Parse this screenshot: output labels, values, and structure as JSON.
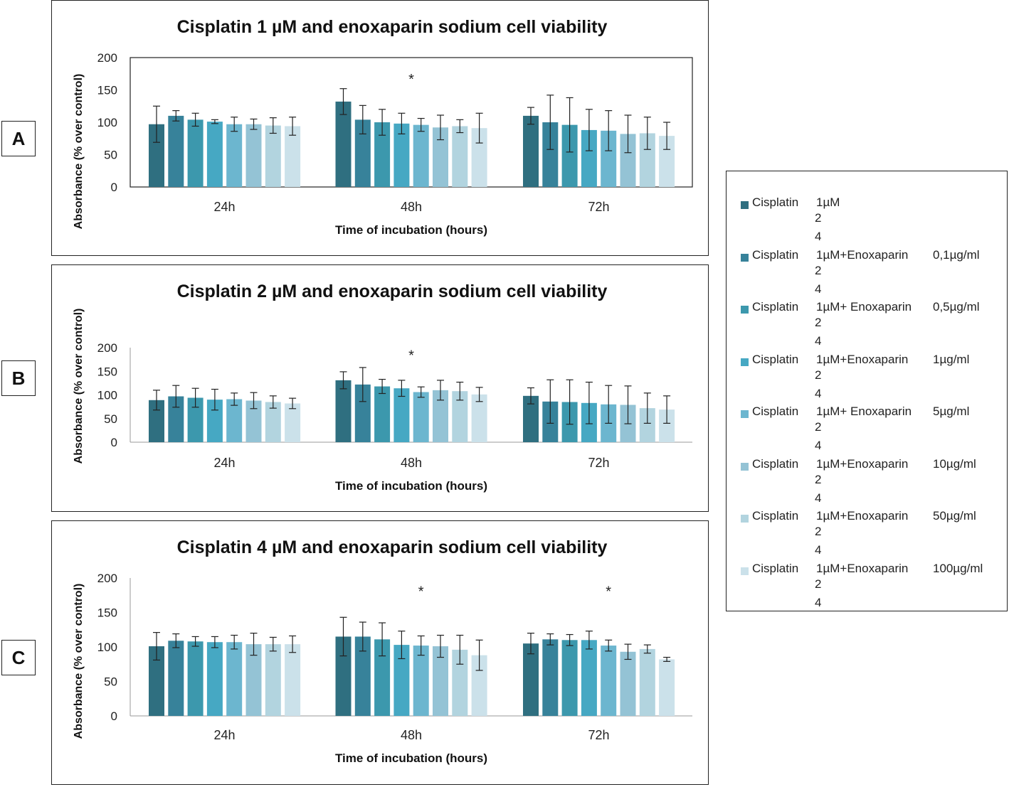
{
  "panel_labels": [
    "A",
    "B",
    "C"
  ],
  "legend": {
    "items": [
      {
        "name": "Cisplatin",
        "dose": "1µM",
        "conc": "",
        "n1": "2",
        "n2": "4",
        "color": "#2f6f80"
      },
      {
        "name": "Cisplatin",
        "dose": "1µM+Enoxaparin",
        "conc": "0,1µg/ml",
        "n1": "2",
        "n2": "4",
        "color": "#37829a"
      },
      {
        "name": "Cisplatin",
        "dose": "1µM+ Enoxaparin",
        "conc": "0,5µg/ml",
        "n1": "2",
        "n2": "4",
        "color": "#3c98ad"
      },
      {
        "name": "Cisplatin",
        "dose": "1µM+Enoxaparin",
        "conc": "1µg/ml",
        "n1": "2",
        "n2": "4",
        "color": "#46a8c3"
      },
      {
        "name": "Cisplatin",
        "dose": "1µM+ Enoxaparin",
        "conc": "5µg/ml",
        "n1": "2",
        "n2": "4",
        "color": "#6cb6cf"
      },
      {
        "name": "Cisplatin",
        "dose": "1µM+Enoxaparin",
        "conc": "10µg/ml",
        "n1": "2",
        "n2": "4",
        "color": "#94c3d5"
      },
      {
        "name": "Cisplatin",
        "dose": "1µM+Enoxaparin",
        "conc": "50µg/ml",
        "n1": "2",
        "n2": "4",
        "color": "#b2d4df"
      },
      {
        "name": "Cisplatin",
        "dose": "1µM+Enoxaparin",
        "conc": "100µg/ml",
        "n1": "2",
        "n2": "4",
        "color": "#cbe1ea"
      }
    ]
  },
  "chart_data": [
    {
      "type": "bar",
      "panel": "A",
      "title": "Cisplatin 1 µM and enoxaparin sodium cell viability",
      "xlabel": "Time of incubation (hours)",
      "ylabel": "Absorbance (% over control)",
      "categories": [
        "24h",
        "48h",
        "72h"
      ],
      "ylim": [
        0,
        200
      ],
      "yticks": [
        "0",
        "50",
        "100",
        "150",
        "200"
      ],
      "plot_frame": true,
      "series": [
        {
          "name": "Cisplatin 1µM",
          "values": [
            97,
            132,
            110
          ],
          "errors": [
            28,
            20,
            13
          ]
        },
        {
          "name": "Cisplatin 1µM+Enoxaparin 0,1µg/ml",
          "values": [
            110,
            104,
            100
          ],
          "errors": [
            8,
            22,
            42
          ]
        },
        {
          "name": "Cisplatin 1µM+ Enoxaparin 0,5µg/ml",
          "values": [
            104,
            100,
            96
          ],
          "errors": [
            10,
            20,
            42
          ]
        },
        {
          "name": "Cisplatin 1µM+Enoxaparin 1µg/ml",
          "values": [
            101,
            98,
            88
          ],
          "errors": [
            3,
            16,
            32
          ]
        },
        {
          "name": "Cisplatin 1µM+ Enoxaparin 5µg/ml",
          "values": [
            97,
            96,
            87
          ],
          "errors": [
            11,
            10,
            31
          ]
        },
        {
          "name": "Cisplatin 1µM+Enoxaparin 10µg/ml",
          "values": [
            97,
            92,
            82
          ],
          "errors": [
            8,
            19,
            29
          ]
        },
        {
          "name": "Cisplatin 1µM+Enoxaparin 50µg/ml",
          "values": [
            95,
            94,
            83
          ],
          "errors": [
            12,
            10,
            25
          ]
        },
        {
          "name": "Cisplatin 1µM+Enoxaparin 100µg/ml",
          "values": [
            94,
            91,
            79
          ],
          "errors": [
            14,
            23,
            21
          ]
        }
      ],
      "annotations": [
        {
          "text": "*",
          "category": "48h",
          "series_index": 3.5,
          "value": 168
        }
      ]
    },
    {
      "type": "bar",
      "panel": "B",
      "title": "Cisplatin 2 µM and enoxaparin sodium cell viability",
      "xlabel": "Time of incubation (hours)",
      "ylabel": "Absorbance (% over control)",
      "categories": [
        "24h",
        "48h",
        "72h"
      ],
      "ylim": [
        0,
        200
      ],
      "yticks": [
        "0",
        "50",
        "100",
        "150",
        "200"
      ],
      "plot_frame": false,
      "series": [
        {
          "name": "Cisplatin 1µM",
          "values": [
            89,
            131,
            98
          ],
          "errors": [
            21,
            18,
            17
          ]
        },
        {
          "name": "Cisplatin 1µM+Enoxaparin 0,1µg/ml",
          "values": [
            97,
            122,
            86
          ],
          "errors": [
            23,
            36,
            46
          ]
        },
        {
          "name": "Cisplatin 1µM+ Enoxaparin 0,5µg/ml",
          "values": [
            94,
            118,
            85
          ],
          "errors": [
            20,
            15,
            47
          ]
        },
        {
          "name": "Cisplatin 1µM+Enoxaparin 1µg/ml",
          "values": [
            90,
            114,
            83
          ],
          "errors": [
            22,
            17,
            44
          ]
        },
        {
          "name": "Cisplatin 1µM+ Enoxaparin 5µg/ml",
          "values": [
            91,
            106,
            80
          ],
          "errors": [
            13,
            11,
            40
          ]
        },
        {
          "name": "Cisplatin 1µM+Enoxaparin 10µg/ml",
          "values": [
            88,
            110,
            79
          ],
          "errors": [
            17,
            21,
            40
          ]
        },
        {
          "name": "Cisplatin 1µM+Enoxaparin 50µg/ml",
          "values": [
            85,
            108,
            72
          ],
          "errors": [
            13,
            19,
            32
          ]
        },
        {
          "name": "Cisplatin 1µM+Enoxaparin 100µg/ml",
          "values": [
            82,
            101,
            69
          ],
          "errors": [
            11,
            15,
            29
          ]
        }
      ],
      "annotations": [
        {
          "text": "*",
          "category": "48h",
          "series_index": 3.5,
          "value": 186
        }
      ]
    },
    {
      "type": "bar",
      "panel": "C",
      "title": "Cisplatin 4 µM and enoxaparin sodium cell viability",
      "xlabel": "Time of incubation (hours)",
      "ylabel": "Absorbance (% over control)",
      "categories": [
        "24h",
        "48h",
        "72h"
      ],
      "ylim": [
        0,
        200
      ],
      "yticks": [
        "0",
        "50",
        "100",
        "150",
        "200"
      ],
      "plot_frame": false,
      "series": [
        {
          "name": "Cisplatin 1µM",
          "values": [
            101,
            115,
            105
          ],
          "errors": [
            20,
            28,
            15
          ]
        },
        {
          "name": "Cisplatin 1µM+Enoxaparin 0,1µg/ml",
          "values": [
            109,
            115,
            111
          ],
          "errors": [
            10,
            21,
            8
          ]
        },
        {
          "name": "Cisplatin 1µM+ Enoxaparin 0,5µg/ml",
          "values": [
            108,
            111,
            110
          ],
          "errors": [
            7,
            24,
            8
          ]
        },
        {
          "name": "Cisplatin 1µM+Enoxaparin 1µg/ml",
          "values": [
            107,
            103,
            110
          ],
          "errors": [
            8,
            20,
            13
          ]
        },
        {
          "name": "Cisplatin 1µM+ Enoxaparin 5µg/ml",
          "values": [
            107,
            102,
            102
          ],
          "errors": [
            10,
            14,
            8
          ]
        },
        {
          "name": "Cisplatin 1µM+Enoxaparin 10µg/ml",
          "values": [
            104,
            101,
            93
          ],
          "errors": [
            16,
            16,
            11
          ]
        },
        {
          "name": "Cisplatin 1µM+Enoxaparin 50µg/ml",
          "values": [
            104,
            96,
            97
          ],
          "errors": [
            10,
            21,
            6
          ]
        },
        {
          "name": "Cisplatin 1µM+Enoxaparin 100µg/ml",
          "values": [
            104,
            88,
            82
          ],
          "errors": [
            12,
            22,
            3
          ]
        }
      ],
      "annotations": [
        {
          "text": "*",
          "category": "48h",
          "series_index": 4,
          "value": 182
        },
        {
          "text": "*",
          "category": "72h",
          "series_index": 4,
          "value": 182
        }
      ]
    }
  ]
}
